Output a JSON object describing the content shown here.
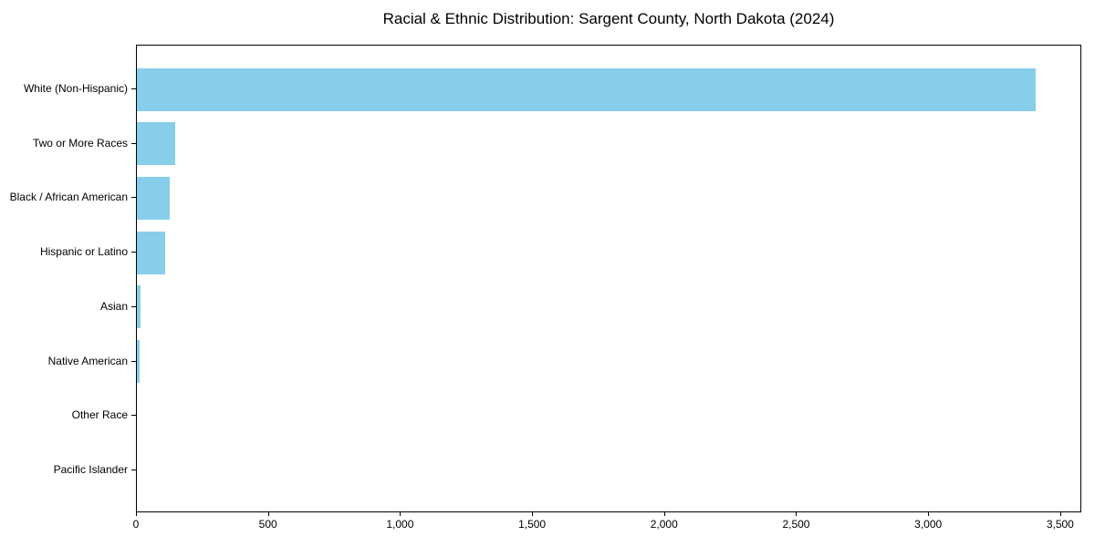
{
  "chart_data": {
    "type": "bar",
    "orientation": "horizontal",
    "title": "Racial & Ethnic Distribution: Sargent County, North Dakota (2024)",
    "categories": [
      "White (Non-Hispanic)",
      "Two or More Races",
      "Black / African American",
      "Hispanic or Latino",
      "Asian",
      "Native American",
      "Other Race",
      "Pacific Islander"
    ],
    "values": [
      3410,
      145,
      123,
      108,
      15,
      10,
      0,
      0
    ],
    "xlabel": "",
    "ylabel": "",
    "xlim": [
      0,
      3580
    ],
    "x_ticks": [
      0,
      500,
      1000,
      1500,
      2000,
      2500,
      3000,
      3500
    ],
    "x_tick_labels": [
      "0",
      "500",
      "1,000",
      "1,500",
      "2,000",
      "2,500",
      "3,000",
      "3,500"
    ],
    "bar_color": "#87CEEB",
    "axis_color": "#000000",
    "grid": false,
    "legend": false
  }
}
